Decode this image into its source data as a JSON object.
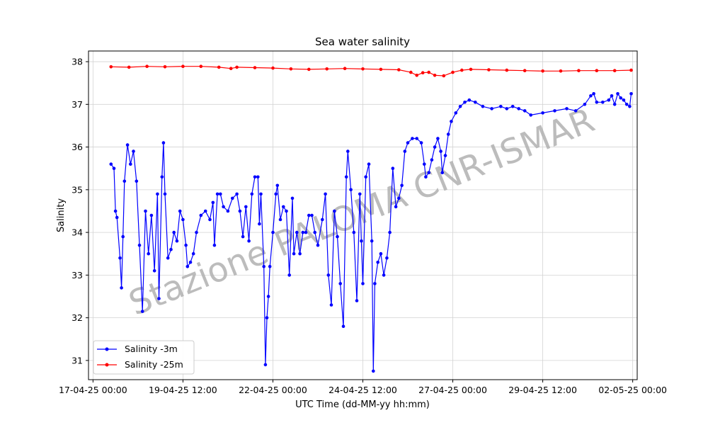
{
  "chart_data": {
    "type": "line",
    "title": "Sea water salinity",
    "xlabel": "UTC Time (dd-MM-yy hh:mm)",
    "ylabel": "Salinity",
    "x_ticks": [
      "17-04-25 00:00",
      "19-04-25 12:00",
      "22-04-25 00:00",
      "24-04-25 12:00",
      "27-04-25 00:00",
      "29-04-25 12:00",
      "02-05-25 00:00"
    ],
    "y_ticks": [
      31,
      32,
      33,
      34,
      35,
      36,
      37,
      38
    ],
    "xlim": [
      "2025-04-16 21:00",
      "2025-05-02 03:00"
    ],
    "ylim": [
      30.55,
      38.25
    ],
    "grid": true,
    "legend_position": "lower-left",
    "watermark": "Stazione PALOMA CNR-ISMAR",
    "series": [
      {
        "name": "Salinity -3m",
        "color": "#0000ff",
        "points": [
          [
            "2025-04-17 12:00",
            35.6
          ],
          [
            "2025-04-17 14:00",
            35.5
          ],
          [
            "2025-04-17 15:00",
            34.5
          ],
          [
            "2025-04-17 16:00",
            34.35
          ],
          [
            "2025-04-17 18:00",
            33.4
          ],
          [
            "2025-04-17 19:00",
            32.7
          ],
          [
            "2025-04-17 20:00",
            33.9
          ],
          [
            "2025-04-17 21:00",
            35.2
          ],
          [
            "2025-04-17 23:00",
            36.05
          ],
          [
            "2025-04-18 01:00",
            35.6
          ],
          [
            "2025-04-18 03:00",
            35.9
          ],
          [
            "2025-04-18 05:00",
            35.2
          ],
          [
            "2025-04-18 07:00",
            33.7
          ],
          [
            "2025-04-18 09:00",
            32.15
          ],
          [
            "2025-04-18 11:00",
            34.5
          ],
          [
            "2025-04-18 13:00",
            33.5
          ],
          [
            "2025-04-18 15:00",
            34.4
          ],
          [
            "2025-04-18 17:00",
            33.1
          ],
          [
            "2025-04-18 19:00",
            34.9
          ],
          [
            "2025-04-18 20:00",
            32.45
          ],
          [
            "2025-04-18 22:00",
            35.3
          ],
          [
            "2025-04-18 23:00",
            36.1
          ],
          [
            "2025-04-19 00:00",
            34.9
          ],
          [
            "2025-04-19 02:00",
            33.4
          ],
          [
            "2025-04-19 04:00",
            33.6
          ],
          [
            "2025-04-19 06:00",
            34.0
          ],
          [
            "2025-04-19 08:00",
            33.8
          ],
          [
            "2025-04-19 10:00",
            34.5
          ],
          [
            "2025-04-19 12:00",
            34.3
          ],
          [
            "2025-04-19 14:00",
            33.7
          ],
          [
            "2025-04-19 15:00",
            33.2
          ],
          [
            "2025-04-19 17:00",
            33.3
          ],
          [
            "2025-04-19 19:00",
            33.5
          ],
          [
            "2025-04-19 21:00",
            34.0
          ],
          [
            "2025-04-20 00:00",
            34.4
          ],
          [
            "2025-04-20 03:00",
            34.5
          ],
          [
            "2025-04-20 06:00",
            34.3
          ],
          [
            "2025-04-20 08:00",
            34.7
          ],
          [
            "2025-04-20 09:00",
            33.7
          ],
          [
            "2025-04-20 11:00",
            34.9
          ],
          [
            "2025-04-20 13:00",
            34.9
          ],
          [
            "2025-04-20 15:00",
            34.6
          ],
          [
            "2025-04-20 18:00",
            34.5
          ],
          [
            "2025-04-20 21:00",
            34.8
          ],
          [
            "2025-04-21 00:00",
            34.9
          ],
          [
            "2025-04-21 02:00",
            34.5
          ],
          [
            "2025-04-21 04:00",
            33.9
          ],
          [
            "2025-04-21 06:00",
            34.6
          ],
          [
            "2025-04-21 08:00",
            33.8
          ],
          [
            "2025-04-21 10:00",
            34.9
          ],
          [
            "2025-04-21 12:00",
            35.3
          ],
          [
            "2025-04-21 14:00",
            35.3
          ],
          [
            "2025-04-21 15:00",
            34.2
          ],
          [
            "2025-04-21 16:00",
            34.9
          ],
          [
            "2025-04-21 18:00",
            33.2
          ],
          [
            "2025-04-21 19:00",
            30.9
          ],
          [
            "2025-04-21 20:00",
            32.0
          ],
          [
            "2025-04-21 21:00",
            32.5
          ],
          [
            "2025-04-21 22:00",
            33.2
          ],
          [
            "2025-04-22 00:00",
            34.0
          ],
          [
            "2025-04-22 02:00",
            34.9
          ],
          [
            "2025-04-22 03:00",
            35.1
          ],
          [
            "2025-04-22 05:00",
            34.3
          ],
          [
            "2025-04-22 07:00",
            34.6
          ],
          [
            "2025-04-22 09:00",
            34.5
          ],
          [
            "2025-04-22 11:00",
            33.0
          ],
          [
            "2025-04-22 13:00",
            34.8
          ],
          [
            "2025-04-22 14:00",
            33.5
          ],
          [
            "2025-04-22 16:00",
            34.0
          ],
          [
            "2025-04-22 18:00",
            33.5
          ],
          [
            "2025-04-22 20:00",
            34.0
          ],
          [
            "2025-04-22 22:00",
            34.0
          ],
          [
            "2025-04-23 00:00",
            34.4
          ],
          [
            "2025-04-23 02:00",
            34.4
          ],
          [
            "2025-04-23 04:00",
            34.0
          ],
          [
            "2025-04-23 06:00",
            33.7
          ],
          [
            "2025-04-23 09:00",
            34.3
          ],
          [
            "2025-04-23 11:00",
            34.9
          ],
          [
            "2025-04-23 13:00",
            33.0
          ],
          [
            "2025-04-23 15:00",
            32.3
          ],
          [
            "2025-04-23 17:00",
            34.5
          ],
          [
            "2025-04-23 19:00",
            33.9
          ],
          [
            "2025-04-23 21:00",
            32.8
          ],
          [
            "2025-04-23 23:00",
            31.8
          ],
          [
            "2025-04-24 01:00",
            35.3
          ],
          [
            "2025-04-24 02:00",
            35.9
          ],
          [
            "2025-04-24 04:00",
            35.0
          ],
          [
            "2025-04-24 06:00",
            34.0
          ],
          [
            "2025-04-24 08:00",
            32.4
          ],
          [
            "2025-04-24 10:00",
            34.9
          ],
          [
            "2025-04-24 11:00",
            33.8
          ],
          [
            "2025-04-24 12:00",
            32.8
          ],
          [
            "2025-04-24 14:00",
            35.3
          ],
          [
            "2025-04-24 16:00",
            35.6
          ],
          [
            "2025-04-24 18:00",
            33.8
          ],
          [
            "2025-04-24 19:00",
            30.75
          ],
          [
            "2025-04-24 20:00",
            32.8
          ],
          [
            "2025-04-24 22:00",
            33.3
          ],
          [
            "2025-04-25 00:00",
            33.5
          ],
          [
            "2025-04-25 02:00",
            33.0
          ],
          [
            "2025-04-25 04:00",
            33.4
          ],
          [
            "2025-04-25 06:00",
            34.0
          ],
          [
            "2025-04-25 08:00",
            35.5
          ],
          [
            "2025-04-25 10:00",
            34.6
          ],
          [
            "2025-04-25 12:00",
            34.8
          ],
          [
            "2025-04-25 14:00",
            35.1
          ],
          [
            "2025-04-25 16:00",
            35.9
          ],
          [
            "2025-04-25 18:00",
            36.1
          ],
          [
            "2025-04-25 21:00",
            36.2
          ],
          [
            "2025-04-26 00:00",
            36.2
          ],
          [
            "2025-04-26 03:00",
            36.1
          ],
          [
            "2025-04-26 05:00",
            35.6
          ],
          [
            "2025-04-26 06:00",
            35.3
          ],
          [
            "2025-04-26 08:00",
            35.4
          ],
          [
            "2025-04-26 10:00",
            35.7
          ],
          [
            "2025-04-26 12:00",
            36.0
          ],
          [
            "2025-04-26 14:00",
            36.2
          ],
          [
            "2025-04-26 16:00",
            35.9
          ],
          [
            "2025-04-26 17:00",
            35.4
          ],
          [
            "2025-04-26 19:00",
            35.8
          ],
          [
            "2025-04-26 21:00",
            36.3
          ],
          [
            "2025-04-26 23:00",
            36.6
          ],
          [
            "2025-04-27 02:00",
            36.8
          ],
          [
            "2025-04-27 05:00",
            36.95
          ],
          [
            "2025-04-27 08:00",
            37.05
          ],
          [
            "2025-04-27 11:00",
            37.1
          ],
          [
            "2025-04-27 15:00",
            37.05
          ],
          [
            "2025-04-27 20:00",
            36.95
          ],
          [
            "2025-04-28 02:00",
            36.9
          ],
          [
            "2025-04-28 08:00",
            36.95
          ],
          [
            "2025-04-28 12:00",
            36.9
          ],
          [
            "2025-04-28 16:00",
            36.95
          ],
          [
            "2025-04-28 20:00",
            36.9
          ],
          [
            "2025-04-29 00:00",
            36.85
          ],
          [
            "2025-04-29 04:00",
            36.75
          ],
          [
            "2025-04-29 12:00",
            36.8
          ],
          [
            "2025-04-29 20:00",
            36.85
          ],
          [
            "2025-04-30 04:00",
            36.9
          ],
          [
            "2025-04-30 10:00",
            36.85
          ],
          [
            "2025-04-30 16:00",
            37.0
          ],
          [
            "2025-04-30 20:00",
            37.2
          ],
          [
            "2025-04-30 22:00",
            37.25
          ],
          [
            "2025-05-01 00:00",
            37.05
          ],
          [
            "2025-05-01 04:00",
            37.05
          ],
          [
            "2025-05-01 08:00",
            37.1
          ],
          [
            "2025-05-01 10:00",
            37.2
          ],
          [
            "2025-05-01 12:00",
            37.0
          ],
          [
            "2025-05-01 14:00",
            37.25
          ],
          [
            "2025-05-01 16:00",
            37.15
          ],
          [
            "2025-05-01 18:00",
            37.1
          ],
          [
            "2025-05-01 20:00",
            37.0
          ],
          [
            "2025-05-01 22:00",
            36.95
          ],
          [
            "2025-05-01 23:00",
            37.25
          ]
        ]
      },
      {
        "name": "Salinity -25m",
        "color": "#ff0000",
        "points": [
          [
            "2025-04-17 12:00",
            37.88
          ],
          [
            "2025-04-18 00:00",
            37.87
          ],
          [
            "2025-04-18 12:00",
            37.89
          ],
          [
            "2025-04-19 00:00",
            37.88
          ],
          [
            "2025-04-19 12:00",
            37.89
          ],
          [
            "2025-04-20 00:00",
            37.89
          ],
          [
            "2025-04-20 12:00",
            37.87
          ],
          [
            "2025-04-20 20:00",
            37.84
          ],
          [
            "2025-04-21 00:00",
            37.87
          ],
          [
            "2025-04-21 12:00",
            37.86
          ],
          [
            "2025-04-22 00:00",
            37.85
          ],
          [
            "2025-04-22 12:00",
            37.83
          ],
          [
            "2025-04-23 00:00",
            37.82
          ],
          [
            "2025-04-23 12:00",
            37.83
          ],
          [
            "2025-04-24 00:00",
            37.84
          ],
          [
            "2025-04-24 12:00",
            37.83
          ],
          [
            "2025-04-25 00:00",
            37.82
          ],
          [
            "2025-04-25 12:00",
            37.81
          ],
          [
            "2025-04-25 20:00",
            37.75
          ],
          [
            "2025-04-26 00:00",
            37.68
          ],
          [
            "2025-04-26 04:00",
            37.74
          ],
          [
            "2025-04-26 08:00",
            37.75
          ],
          [
            "2025-04-26 12:00",
            37.68
          ],
          [
            "2025-04-26 18:00",
            37.67
          ],
          [
            "2025-04-27 00:00",
            37.75
          ],
          [
            "2025-04-27 06:00",
            37.8
          ],
          [
            "2025-04-27 12:00",
            37.82
          ],
          [
            "2025-04-28 00:00",
            37.81
          ],
          [
            "2025-04-28 12:00",
            37.8
          ],
          [
            "2025-04-29 00:00",
            37.79
          ],
          [
            "2025-04-29 12:00",
            37.78
          ],
          [
            "2025-04-30 00:00",
            37.78
          ],
          [
            "2025-04-30 12:00",
            37.79
          ],
          [
            "2025-05-01 00:00",
            37.79
          ],
          [
            "2025-05-01 12:00",
            37.79
          ],
          [
            "2025-05-01 23:00",
            37.8
          ]
        ]
      }
    ]
  }
}
